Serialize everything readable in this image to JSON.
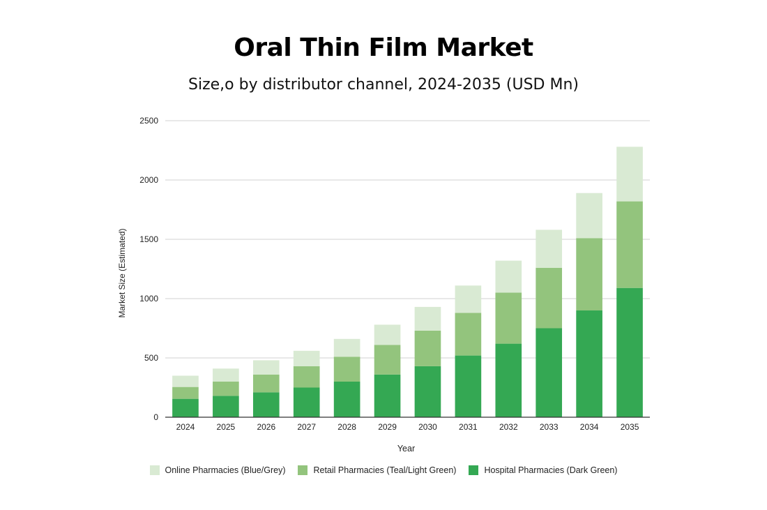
{
  "chart_data": {
    "type": "bar",
    "stacked": true,
    "title": "Oral Thin Film Market",
    "subtitle": "Size,o by distributor channel, 2024-2035 (USD Mn)",
    "xlabel": "Year",
    "ylabel": "Market Size (Estimated)",
    "ylim": [
      0,
      2500
    ],
    "yticks": [
      "0",
      "500",
      "1000",
      "1500",
      "2000",
      "2500"
    ],
    "grid": true,
    "legend_position": "bottom",
    "categories": [
      "2024",
      "2025",
      "2026",
      "2027",
      "2028",
      "2029",
      "2030",
      "2031",
      "2032",
      "2033",
      "2034",
      "2035"
    ],
    "series": [
      {
        "name": "Hospital Pharmacies (Dark Green)",
        "color": "#34a853",
        "values": [
          155,
          180,
          210,
          250,
          300,
          360,
          430,
          520,
          620,
          750,
          900,
          1090
        ]
      },
      {
        "name": "Retail Pharmacies (Teal/Light Green)",
        "color": "#93c47d",
        "values": [
          100,
          120,
          150,
          180,
          210,
          250,
          300,
          360,
          430,
          510,
          610,
          730
        ]
      },
      {
        "name": "Online Pharmacies (Blue/Grey)",
        "color": "#d9ead3",
        "values": [
          95,
          110,
          120,
          130,
          150,
          170,
          200,
          230,
          270,
          320,
          380,
          460
        ]
      }
    ],
    "legend_order": [
      2,
      1,
      0
    ]
  }
}
